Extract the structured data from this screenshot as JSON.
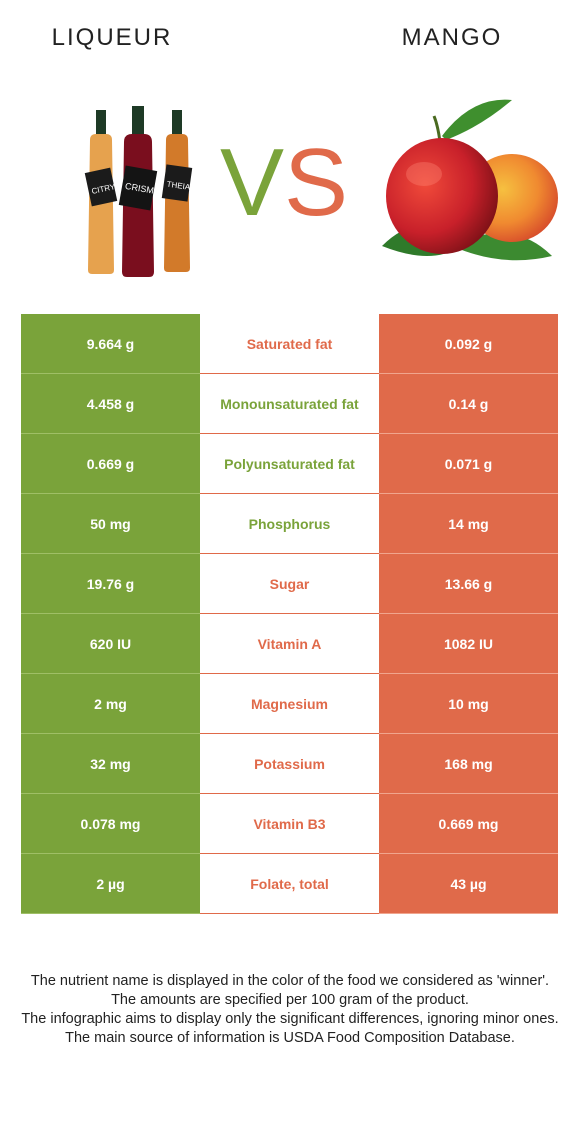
{
  "header": {
    "left_title": "LIQUEUR",
    "right_title": "MANGO",
    "vs_v": "V",
    "vs_s": "S"
  },
  "images": {
    "left": "liqueur-bottles",
    "right": "mango-fruit",
    "left_labels": [
      "CITRY",
      "CRISM",
      "THEIA"
    ]
  },
  "colors": {
    "liqueur_green": "#7aa33a",
    "mango_orange": "#e06a4a"
  },
  "rows": [
    {
      "left": "9.664 g",
      "name": "Saturated fat",
      "right": "0.092 g",
      "winner": "right"
    },
    {
      "left": "4.458 g",
      "name": "Monounsaturated fat",
      "right": "0.14 g",
      "winner": "left"
    },
    {
      "left": "0.669 g",
      "name": "Polyunsaturated fat",
      "right": "0.071 g",
      "winner": "left"
    },
    {
      "left": "50 mg",
      "name": "Phosphorus",
      "right": "14 mg",
      "winner": "left"
    },
    {
      "left": "19.76 g",
      "name": "Sugar",
      "right": "13.66 g",
      "winner": "right"
    },
    {
      "left": "620 IU",
      "name": "Vitamin A",
      "right": "1082 IU",
      "winner": "right"
    },
    {
      "left": "2 mg",
      "name": "Magnesium",
      "right": "10 mg",
      "winner": "right"
    },
    {
      "left": "32 mg",
      "name": "Potassium",
      "right": "168 mg",
      "winner": "right"
    },
    {
      "left": "0.078 mg",
      "name": "Vitamin B3",
      "right": "0.669 mg",
      "winner": "right"
    },
    {
      "left": "2 µg",
      "name": "Folate, total",
      "right": "43 µg",
      "winner": "right"
    }
  ],
  "footer": {
    "line1": "The nutrient name is displayed in the color of the food we considered as 'winner'.",
    "line2": "The amounts are specified per 100 gram of the product.",
    "line3": "The infographic aims to display only the significant differences, ignoring minor ones.",
    "line4": "The main source of information is USDA Food Composition Database."
  }
}
